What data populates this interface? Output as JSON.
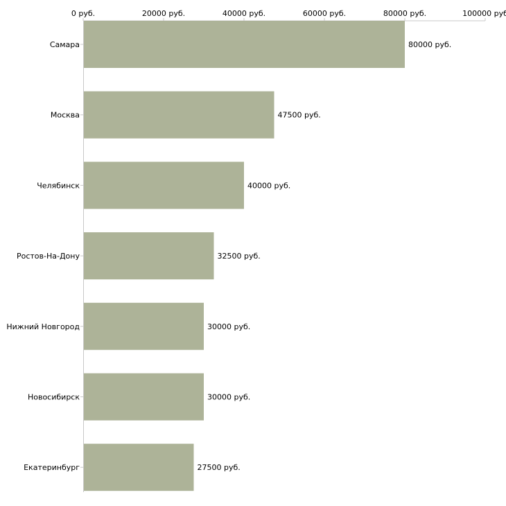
{
  "chart_data": {
    "type": "bar",
    "orientation": "horizontal",
    "title": "",
    "xlabel": "",
    "ylabel": "",
    "categories": [
      "Самара",
      "Москва",
      "Челябинск",
      "Ростов-На-Дону",
      "Нижний Новгород",
      "Новосибирск",
      "Екатеринбург"
    ],
    "values": [
      80000,
      47500,
      40000,
      32500,
      30000,
      30000,
      27500
    ],
    "value_labels": [
      "80000 руб.",
      "47500 руб.",
      "40000 руб.",
      "32500 руб.",
      "30000 руб.",
      "30000 руб.",
      "27500 руб."
    ],
    "xlim": [
      0,
      100000
    ],
    "ticks": [
      0,
      20000,
      40000,
      60000,
      80000,
      100000
    ],
    "tick_labels": [
      "0 руб.",
      "20000 руб.",
      "40000 руб.",
      "60000 руб.",
      "80000 руб.",
      "100000 руб"
    ],
    "axis_position": "top",
    "grid": false,
    "legend": "none",
    "bar_color": "#adb398"
  }
}
